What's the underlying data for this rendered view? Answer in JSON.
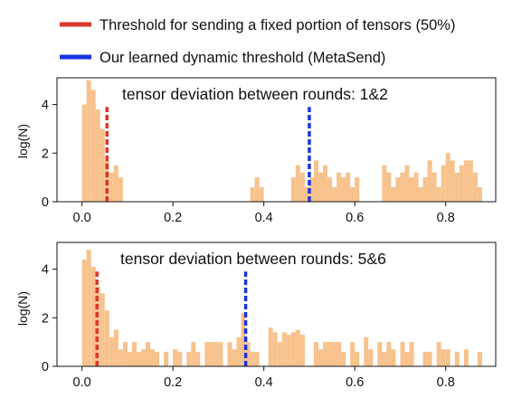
{
  "colors": {
    "histogram": "#f7c28d",
    "fixed_threshold": "#d9372b",
    "learned_threshold": "#1a35e6",
    "axis": "#111111"
  },
  "legend": [
    {
      "label": "Threshold for sending a fixed portion of tensors (50%)",
      "color": "#d9372b"
    },
    {
      "label": "Our learned dynamic threshold (MetaSend)",
      "color": "#1a35e6"
    }
  ],
  "chart_data": [
    {
      "type": "bar",
      "title": "tensor deviation between rounds: 1&2",
      "xlabel": "",
      "ylabel": "log(N)",
      "xlim": [
        -0.055,
        0.91
      ],
      "ylim": [
        0,
        5.1
      ],
      "xticks": [
        0.0,
        0.2,
        0.4,
        0.6,
        0.8
      ],
      "xtick_labels": [
        "0.0",
        "0.2",
        "0.4",
        "0.6",
        "0.8"
      ],
      "yticks": [
        0,
        2,
        4
      ],
      "ytick_labels": [
        "0",
        "2",
        "4"
      ],
      "bin_width": 0.01,
      "bins": [
        [
          0.0,
          4.0
        ],
        [
          0.01,
          5.0
        ],
        [
          0.02,
          4.6
        ],
        [
          0.03,
          3.8
        ],
        [
          0.04,
          3.0
        ],
        [
          0.05,
          1.7
        ],
        [
          0.06,
          1.2
        ],
        [
          0.07,
          1.5
        ],
        [
          0.08,
          1.0
        ],
        [
          0.37,
          0.6
        ],
        [
          0.38,
          1.0
        ],
        [
          0.39,
          0.6
        ],
        [
          0.46,
          1.0
        ],
        [
          0.47,
          1.5
        ],
        [
          0.48,
          1.2
        ],
        [
          0.49,
          0.6
        ],
        [
          0.5,
          1.0
        ],
        [
          0.51,
          1.7
        ],
        [
          0.52,
          1.2
        ],
        [
          0.53,
          1.5
        ],
        [
          0.54,
          1.0
        ],
        [
          0.55,
          0.6
        ],
        [
          0.56,
          1.2
        ],
        [
          0.57,
          1.0
        ],
        [
          0.58,
          1.2
        ],
        [
          0.59,
          0.6
        ],
        [
          0.6,
          1.0
        ],
        [
          0.66,
          1.5
        ],
        [
          0.67,
          1.2
        ],
        [
          0.68,
          0.6
        ],
        [
          0.69,
          1.0
        ],
        [
          0.7,
          1.2
        ],
        [
          0.71,
          1.5
        ],
        [
          0.72,
          1.0
        ],
        [
          0.73,
          1.2
        ],
        [
          0.74,
          0.6
        ],
        [
          0.75,
          1.0
        ],
        [
          0.76,
          1.7
        ],
        [
          0.77,
          1.2
        ],
        [
          0.78,
          0.6
        ],
        [
          0.79,
          1.5
        ],
        [
          0.8,
          2.0
        ],
        [
          0.81,
          1.7
        ],
        [
          0.82,
          1.2
        ],
        [
          0.83,
          1.5
        ],
        [
          0.84,
          1.7
        ],
        [
          0.85,
          1.7
        ],
        [
          0.86,
          1.2
        ],
        [
          0.87,
          0.6
        ]
      ],
      "thresholds": [
        {
          "name": "fixed",
          "x": 0.055
        },
        {
          "name": "learned",
          "x": 0.5
        }
      ]
    },
    {
      "type": "bar",
      "title": "tensor deviation between rounds: 5&6",
      "xlabel": "",
      "ylabel": "log(N)",
      "xlim": [
        -0.055,
        0.91
      ],
      "ylim": [
        0,
        5.1
      ],
      "xticks": [
        0.0,
        0.2,
        0.4,
        0.6,
        0.8
      ],
      "xtick_labels": [
        "0.0",
        "0.2",
        "0.4",
        "0.6",
        "0.8"
      ],
      "yticks": [
        0,
        2,
        4
      ],
      "ytick_labels": [
        "0",
        "2",
        "4"
      ],
      "bin_width": 0.01,
      "bins": [
        [
          0.0,
          4.4
        ],
        [
          0.01,
          4.8
        ],
        [
          0.02,
          4.1
        ],
        [
          0.03,
          3.3
        ],
        [
          0.04,
          3.0
        ],
        [
          0.05,
          2.3
        ],
        [
          0.06,
          1.2
        ],
        [
          0.07,
          1.5
        ],
        [
          0.08,
          0.7
        ],
        [
          0.09,
          1.0
        ],
        [
          0.1,
          0.6
        ],
        [
          0.11,
          1.0
        ],
        [
          0.12,
          0.6
        ],
        [
          0.13,
          0.7
        ],
        [
          0.14,
          1.0
        ],
        [
          0.15,
          0.7
        ],
        [
          0.16,
          0.6
        ],
        [
          0.18,
          0.6
        ],
        [
          0.2,
          0.7
        ],
        [
          0.21,
          0.6
        ],
        [
          0.23,
          0.6
        ],
        [
          0.24,
          1.0
        ],
        [
          0.25,
          0.6
        ],
        [
          0.27,
          1.0
        ],
        [
          0.28,
          1.0
        ],
        [
          0.29,
          1.0
        ],
        [
          0.3,
          1.0
        ],
        [
          0.32,
          1.0
        ],
        [
          0.33,
          0.7
        ],
        [
          0.34,
          1.2
        ],
        [
          0.35,
          2.2
        ],
        [
          0.36,
          1.0
        ],
        [
          0.37,
          0.6
        ],
        [
          0.38,
          0.6
        ],
        [
          0.41,
          1.6
        ],
        [
          0.42,
          1.4
        ],
        [
          0.43,
          1.0
        ],
        [
          0.44,
          1.4
        ],
        [
          0.45,
          1.3
        ],
        [
          0.46,
          1.4
        ],
        [
          0.47,
          1.5
        ],
        [
          0.48,
          1.3
        ],
        [
          0.51,
          1.0
        ],
        [
          0.52,
          0.7
        ],
        [
          0.53,
          1.0
        ],
        [
          0.54,
          1.0
        ],
        [
          0.55,
          1.0
        ],
        [
          0.56,
          1.0
        ],
        [
          0.57,
          0.6
        ],
        [
          0.59,
          1.0
        ],
        [
          0.6,
          0.6
        ],
        [
          0.62,
          1.2
        ],
        [
          0.63,
          0.7
        ],
        [
          0.65,
          1.0
        ],
        [
          0.66,
          0.6
        ],
        [
          0.67,
          1.0
        ],
        [
          0.68,
          0.7
        ],
        [
          0.7,
          1.0
        ],
        [
          0.71,
          0.6
        ],
        [
          0.72,
          1.0
        ],
        [
          0.75,
          0.6
        ],
        [
          0.76,
          0.6
        ],
        [
          0.78,
          1.0
        ],
        [
          0.79,
          0.7
        ],
        [
          0.8,
          0.7
        ],
        [
          0.82,
          0.6
        ],
        [
          0.84,
          0.7
        ],
        [
          0.87,
          0.6
        ]
      ],
      "thresholds": [
        {
          "name": "fixed",
          "x": 0.033
        },
        {
          "name": "learned",
          "x": 0.36
        }
      ]
    }
  ]
}
